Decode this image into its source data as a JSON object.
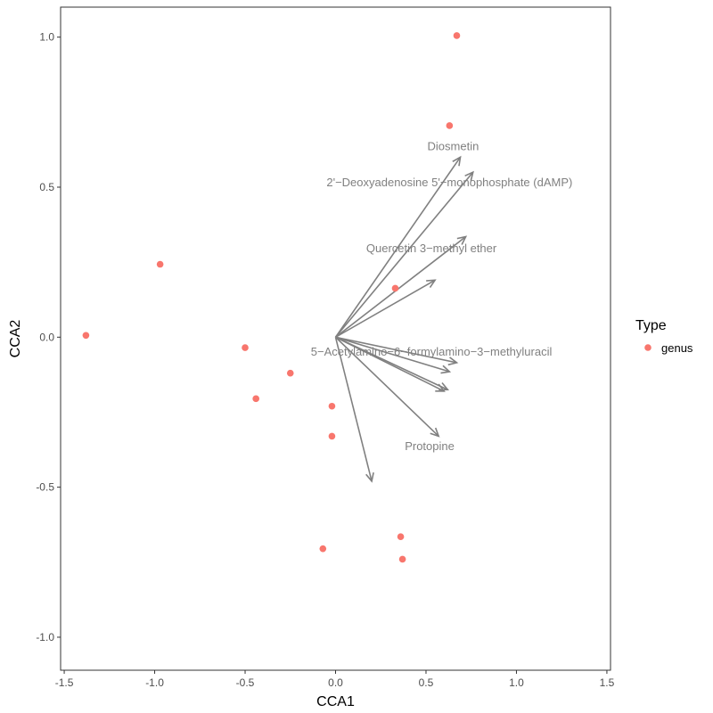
{
  "chart_data": {
    "type": "scatter",
    "title": "",
    "xlabel": "CCA1",
    "ylabel": "CCA2",
    "xlim": [
      -1.52,
      1.52
    ],
    "ylim": [
      -1.11,
      1.1
    ],
    "x_ticks": [
      -1.5,
      -1.0,
      -0.5,
      0.0,
      0.5,
      1.0,
      1.5
    ],
    "x_tick_labels": [
      "-1.5",
      "-1.0",
      "-0.5",
      "0.0",
      "0.5",
      "1.0",
      "1.5"
    ],
    "y_ticks": [
      -1.0,
      -0.5,
      0.0,
      0.5,
      1.0
    ],
    "y_tick_labels": [
      "-1.0",
      "-0.5",
      "0.0",
      "0.5",
      "1.0"
    ],
    "grid": false,
    "point_color": "#F8766D",
    "arrow_color": "#808080",
    "series": [
      {
        "name": "genus",
        "points": [
          {
            "x": 0.67,
            "y": 1.005
          },
          {
            "x": 0.63,
            "y": 0.705
          },
          {
            "x": -0.97,
            "y": 0.243
          },
          {
            "x": 0.33,
            "y": 0.163
          },
          {
            "x": -1.38,
            "y": 0.006
          },
          {
            "x": -0.5,
            "y": -0.035
          },
          {
            "x": -0.25,
            "y": -0.12
          },
          {
            "x": -0.44,
            "y": -0.205
          },
          {
            "x": -0.02,
            "y": -0.23
          },
          {
            "x": -0.02,
            "y": -0.33
          },
          {
            "x": 0.36,
            "y": -0.665
          },
          {
            "x": -0.07,
            "y": -0.705
          },
          {
            "x": 0.37,
            "y": -0.74
          }
        ]
      }
    ],
    "arrows": [
      {
        "x": 0.69,
        "y": 0.6
      },
      {
        "x": 0.76,
        "y": 0.55
      },
      {
        "x": 0.72,
        "y": 0.335
      },
      {
        "x": 0.55,
        "y": 0.19
      },
      {
        "x": 0.67,
        "y": -0.085
      },
      {
        "x": 0.63,
        "y": -0.115
      },
      {
        "x": 0.62,
        "y": -0.175
      },
      {
        "x": 0.6,
        "y": -0.18
      },
      {
        "x": 0.57,
        "y": -0.33
      },
      {
        "x": 0.2,
        "y": -0.48
      }
    ],
    "annotations": [
      {
        "text": "Diosmetin",
        "x": 0.65,
        "y": 0.635
      },
      {
        "text": "2'−Deoxyadenosine 5'−monophosphate (dAMP)",
        "x": 0.63,
        "y": 0.515
      },
      {
        "text": "Quercetin 3−methyl ether",
        "x": 0.53,
        "y": 0.295
      },
      {
        "text": "5−Acetylamino−6−formylamino−3−methyluracil",
        "x": 0.53,
        "y": -0.05
      },
      {
        "text": "Protopine",
        "x": 0.52,
        "y": -0.365
      }
    ],
    "legend": {
      "title": "Type",
      "position": "right",
      "entries": [
        {
          "label": "genus",
          "color": "#F8766D"
        }
      ]
    }
  }
}
